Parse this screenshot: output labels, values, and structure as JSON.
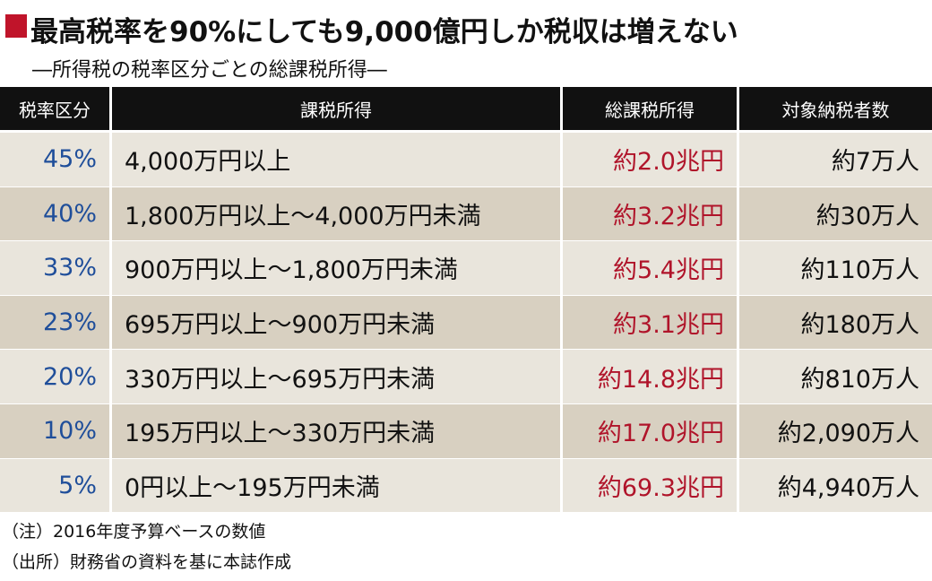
{
  "header": {
    "title": "最高税率を90%にしても9,000億円しか税収は増えない",
    "subtitle": "―所得税の税率区分ごとの総課税所得―"
  },
  "table": {
    "columns": [
      "税率区分",
      "課税所得",
      "総課税所得",
      "対象納税者数"
    ],
    "rows": [
      [
        "45%",
        "4,000万円以上",
        "約2.0兆円",
        "約7万人"
      ],
      [
        "40%",
        "1,800万円以上～4,000万円未満",
        "約3.2兆円",
        "約30万人"
      ],
      [
        "33%",
        "900万円以上～1,800万円未満",
        "約5.4兆円",
        "約110万人"
      ],
      [
        "23%",
        "695万円以上～900万円未満",
        "約3.1兆円",
        "約180万人"
      ],
      [
        "20%",
        "330万円以上～695万円未満",
        "約14.8兆円",
        "約810万人"
      ],
      [
        "10%",
        "195万円以上～330万円未満",
        "約17.0兆円",
        "約2,090万人"
      ],
      [
        "5%",
        "0円以上～195万円未満",
        "約69.3兆円",
        "約4,940万人"
      ]
    ]
  },
  "notes": [
    "（注）2016年度予算ベースの数値",
    "（出所）財務省の資料を基に本誌作成"
  ]
}
